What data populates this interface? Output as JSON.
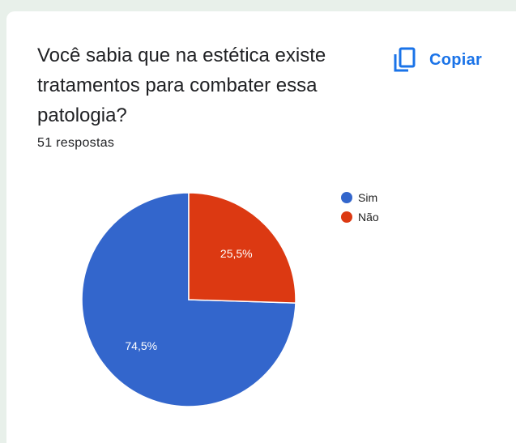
{
  "question": {
    "title": "Você sabia que na estética existe tratamentos para combater essa patologia?",
    "responses": "51 respostas"
  },
  "actions": {
    "copy_label": "Copiar",
    "copy_icon": "copy-icon"
  },
  "chart_data": {
    "type": "pie",
    "categories": [
      "Sim",
      "Não"
    ],
    "values": [
      74.5,
      25.5
    ],
    "labels": [
      "74,5%",
      "25,5%"
    ],
    "colors": [
      "#3366cc",
      "#dc3912"
    ],
    "legend": "right"
  }
}
